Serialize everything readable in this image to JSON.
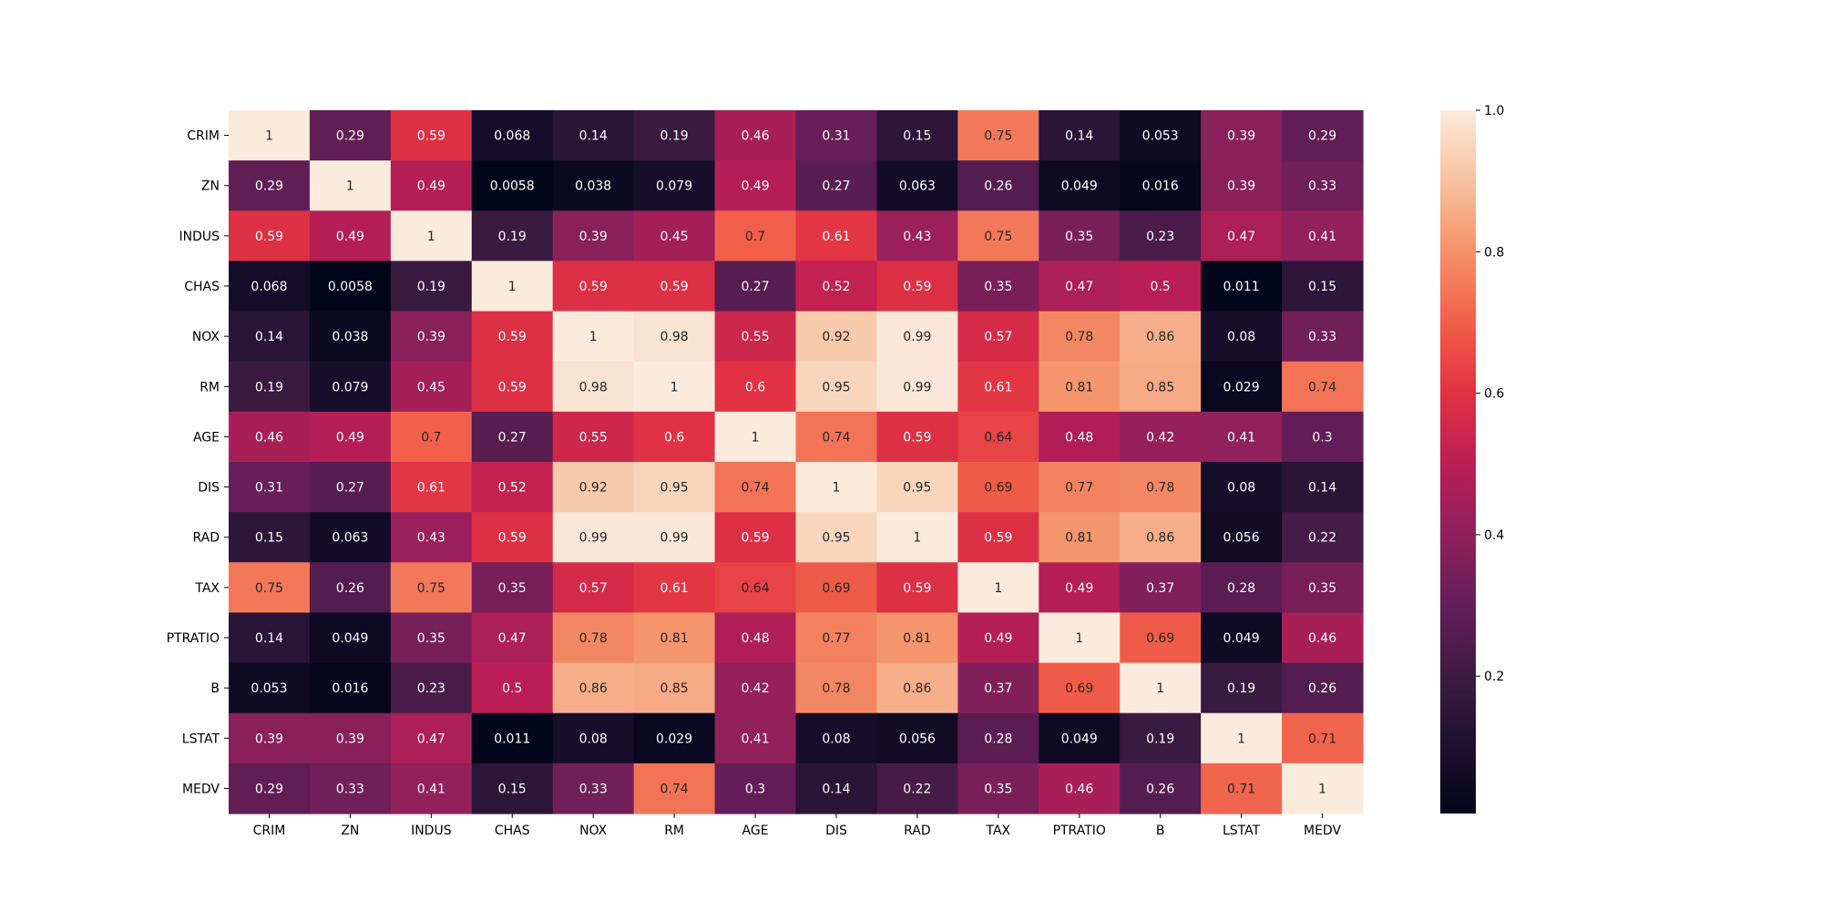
{
  "chart_data": {
    "type": "heatmap",
    "title": "",
    "xlabel": "",
    "ylabel": "",
    "grid": false,
    "colormap": "rocket",
    "x_categories": [
      "CRIM",
      "ZN",
      "INDUS",
      "CHAS",
      "NOX",
      "RM",
      "AGE",
      "DIS",
      "RAD",
      "TAX",
      "PTRATIO",
      "B",
      "LSTAT",
      "MEDV"
    ],
    "y_categories": [
      "CRIM",
      "ZN",
      "INDUS",
      "CHAS",
      "NOX",
      "RM",
      "AGE",
      "DIS",
      "RAD",
      "TAX",
      "PTRATIO",
      "B",
      "LSTAT",
      "MEDV"
    ],
    "values": [
      [
        1,
        0.29,
        0.59,
        0.068,
        0.14,
        0.19,
        0.46,
        0.31,
        0.15,
        0.75,
        0.14,
        0.053,
        0.39,
        0.29
      ],
      [
        0.29,
        1,
        0.49,
        0.0058,
        0.038,
        0.079,
        0.49,
        0.27,
        0.063,
        0.26,
        0.049,
        0.016,
        0.39,
        0.33
      ],
      [
        0.59,
        0.49,
        1,
        0.19,
        0.39,
        0.45,
        0.7,
        0.61,
        0.43,
        0.75,
        0.35,
        0.23,
        0.47,
        0.41
      ],
      [
        0.068,
        0.0058,
        0.19,
        1,
        0.59,
        0.59,
        0.27,
        0.52,
        0.59,
        0.35,
        0.47,
        0.5,
        0.011,
        0.15
      ],
      [
        0.14,
        0.038,
        0.39,
        0.59,
        1,
        0.98,
        0.55,
        0.92,
        0.99,
        0.57,
        0.78,
        0.86,
        0.08,
        0.33
      ],
      [
        0.19,
        0.079,
        0.45,
        0.59,
        0.98,
        1,
        0.6,
        0.95,
        0.99,
        0.61,
        0.81,
        0.85,
        0.029,
        0.74
      ],
      [
        0.46,
        0.49,
        0.7,
        0.27,
        0.55,
        0.6,
        1,
        0.74,
        0.59,
        0.64,
        0.48,
        0.42,
        0.41,
        0.3
      ],
      [
        0.31,
        0.27,
        0.61,
        0.52,
        0.92,
        0.95,
        0.74,
        1,
        0.95,
        0.69,
        0.77,
        0.78,
        0.08,
        0.14
      ],
      [
        0.15,
        0.063,
        0.43,
        0.59,
        0.99,
        0.99,
        0.59,
        0.95,
        1,
        0.59,
        0.81,
        0.86,
        0.056,
        0.22
      ],
      [
        0.75,
        0.26,
        0.75,
        0.35,
        0.57,
        0.61,
        0.64,
        0.69,
        0.59,
        1,
        0.49,
        0.37,
        0.28,
        0.35
      ],
      [
        0.14,
        0.049,
        0.35,
        0.47,
        0.78,
        0.81,
        0.48,
        0.77,
        0.81,
        0.49,
        1,
        0.69,
        0.049,
        0.46
      ],
      [
        0.053,
        0.016,
        0.23,
        0.5,
        0.86,
        0.85,
        0.42,
        0.78,
        0.86,
        0.37,
        0.69,
        1,
        0.19,
        0.26
      ],
      [
        0.39,
        0.39,
        0.47,
        0.011,
        0.08,
        0.029,
        0.41,
        0.08,
        0.056,
        0.28,
        0.049,
        0.19,
        1,
        0.71
      ],
      [
        0.29,
        0.33,
        0.41,
        0.15,
        0.33,
        0.74,
        0.3,
        0.14,
        0.22,
        0.35,
        0.46,
        0.26,
        0.71,
        1
      ]
    ],
    "annotations": [
      [
        "1",
        "0.29",
        "0.59",
        "0.068",
        "0.14",
        "0.19",
        "0.46",
        "0.31",
        "0.15",
        "0.75",
        "0.14",
        "0.053",
        "0.39",
        "0.29"
      ],
      [
        "0.29",
        "1",
        "0.49",
        "0.0058",
        "0.038",
        "0.079",
        "0.49",
        "0.27",
        "0.063",
        "0.26",
        "0.049",
        "0.016",
        "0.39",
        "0.33"
      ],
      [
        "0.59",
        "0.49",
        "1",
        "0.19",
        "0.39",
        "0.45",
        "0.7",
        "0.61",
        "0.43",
        "0.75",
        "0.35",
        "0.23",
        "0.47",
        "0.41"
      ],
      [
        "0.068",
        "0.0058",
        "0.19",
        "1",
        "0.59",
        "0.59",
        "0.27",
        "0.52",
        "0.59",
        "0.35",
        "0.47",
        "0.5",
        "0.011",
        "0.15"
      ],
      [
        "0.14",
        "0.038",
        "0.39",
        "0.59",
        "1",
        "0.98",
        "0.55",
        "0.92",
        "0.99",
        "0.57",
        "0.78",
        "0.86",
        "0.08",
        "0.33"
      ],
      [
        "0.19",
        "0.079",
        "0.45",
        "0.59",
        "0.98",
        "1",
        "0.6",
        "0.95",
        "0.99",
        "0.61",
        "0.81",
        "0.85",
        "0.029",
        "0.74"
      ],
      [
        "0.46",
        "0.49",
        "0.7",
        "0.27",
        "0.55",
        "0.6",
        "1",
        "0.74",
        "0.59",
        "0.64",
        "0.48",
        "0.42",
        "0.41",
        "0.3"
      ],
      [
        "0.31",
        "0.27",
        "0.61",
        "0.52",
        "0.92",
        "0.95",
        "0.74",
        "1",
        "0.95",
        "0.69",
        "0.77",
        "0.78",
        "0.08",
        "0.14"
      ],
      [
        "0.15",
        "0.063",
        "0.43",
        "0.59",
        "0.99",
        "0.99",
        "0.59",
        "0.95",
        "1",
        "0.59",
        "0.81",
        "0.86",
        "0.056",
        "0.22"
      ],
      [
        "0.75",
        "0.26",
        "0.75",
        "0.35",
        "0.57",
        "0.61",
        "0.64",
        "0.69",
        "0.59",
        "1",
        "0.49",
        "0.37",
        "0.28",
        "0.35"
      ],
      [
        "0.14",
        "0.049",
        "0.35",
        "0.47",
        "0.78",
        "0.81",
        "0.48",
        "0.77",
        "0.81",
        "0.49",
        "1",
        "0.69",
        "0.049",
        "0.46"
      ],
      [
        "0.053",
        "0.016",
        "0.23",
        "0.5",
        "0.86",
        "0.85",
        "0.42",
        "0.78",
        "0.86",
        "0.37",
        "0.69",
        "1",
        "0.19",
        "0.26"
      ],
      [
        "0.39",
        "0.39",
        "0.47",
        "0.011",
        "0.08",
        "0.029",
        "0.41",
        "0.08",
        "0.056",
        "0.28",
        "0.049",
        "0.19",
        "1",
        "0.71"
      ],
      [
        "0.29",
        "0.33",
        "0.41",
        "0.15",
        "0.33",
        "0.74",
        "0.3",
        "0.14",
        "0.22",
        "0.35",
        "0.46",
        "0.26",
        "0.71",
        "1"
      ]
    ],
    "colorbar": {
      "range": [
        0.0058,
        1
      ],
      "ticks": [
        0.2,
        0.4,
        0.6,
        0.8,
        1.0
      ],
      "tick_labels": [
        "0.2",
        "0.4",
        "0.6",
        "0.8",
        "1.0"
      ]
    }
  }
}
